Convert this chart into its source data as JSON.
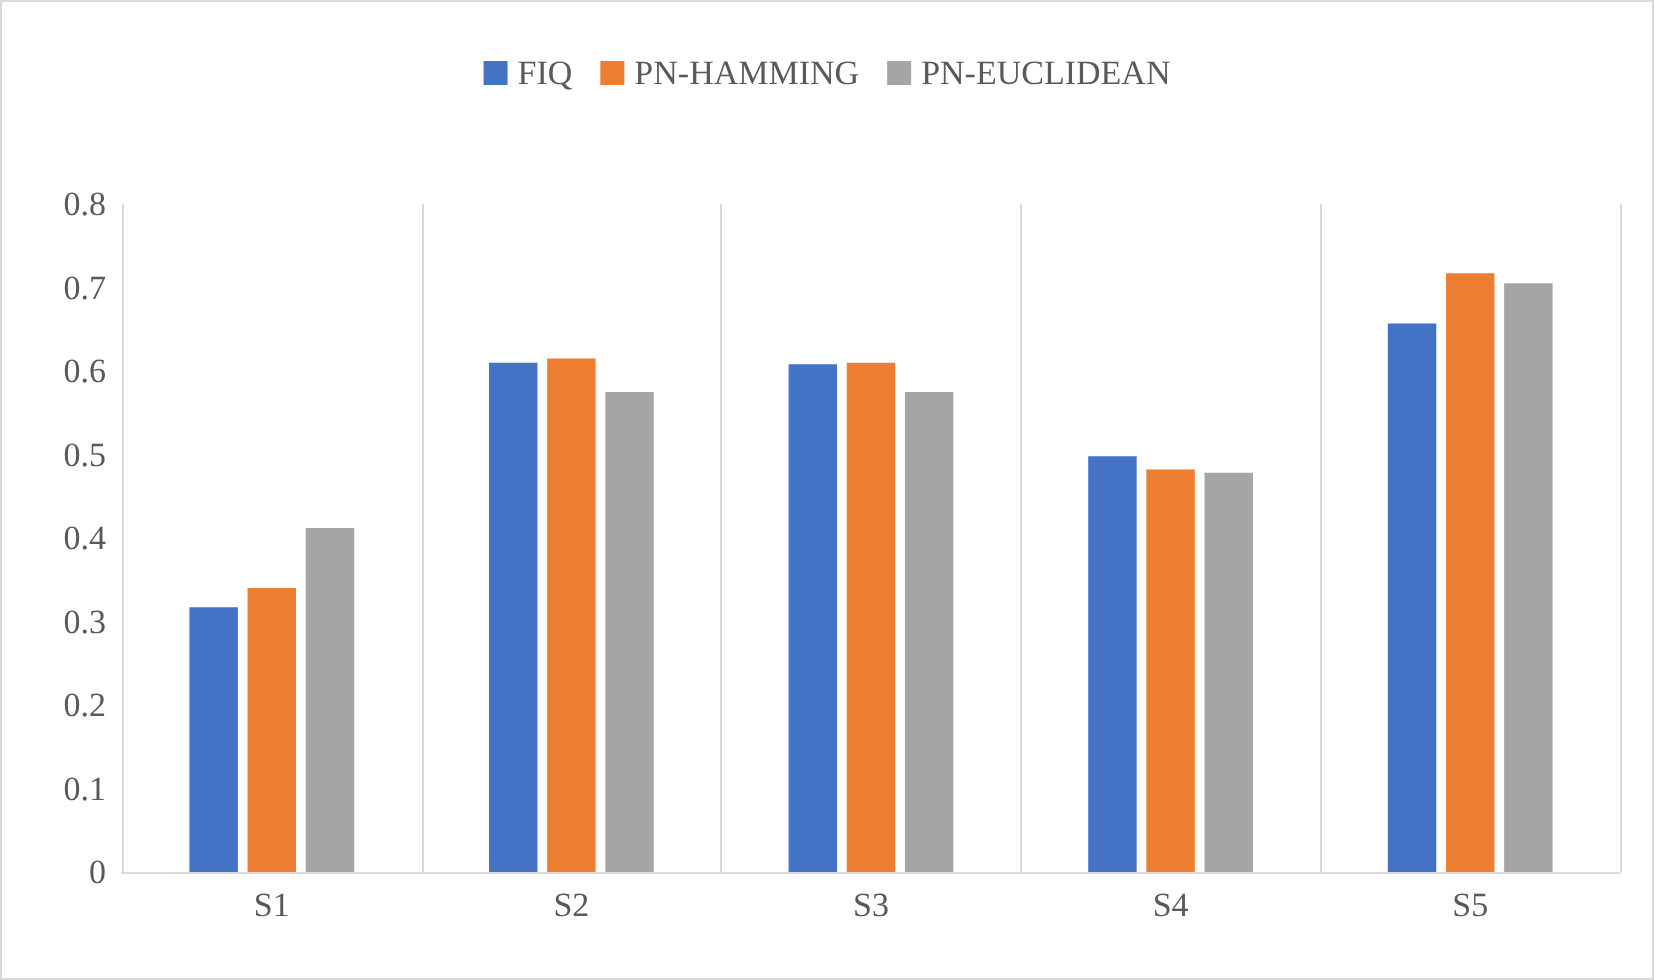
{
  "chart_data": {
    "type": "bar",
    "categories": [
      "S1",
      "S2",
      "S3",
      "S4",
      "S5"
    ],
    "series": [
      {
        "name": "FIQ",
        "color": "#4472c4",
        "values": [
          0.317,
          0.61,
          0.608,
          0.498,
          0.657
        ]
      },
      {
        "name": "PN-HAMMING",
        "color": "#ed7d31",
        "values": [
          0.34,
          0.615,
          0.61,
          0.482,
          0.717
        ]
      },
      {
        "name": "PN-EUCLIDEAN",
        "color": "#a5a5a5",
        "values": [
          0.412,
          0.575,
          0.575,
          0.478,
          0.705
        ]
      }
    ],
    "ylim": [
      0,
      0.8
    ],
    "yticks": [
      0,
      0.1,
      0.2,
      0.3,
      0.4,
      0.5,
      0.6,
      0.7,
      0.8
    ],
    "grid": "x",
    "legend": "top"
  }
}
